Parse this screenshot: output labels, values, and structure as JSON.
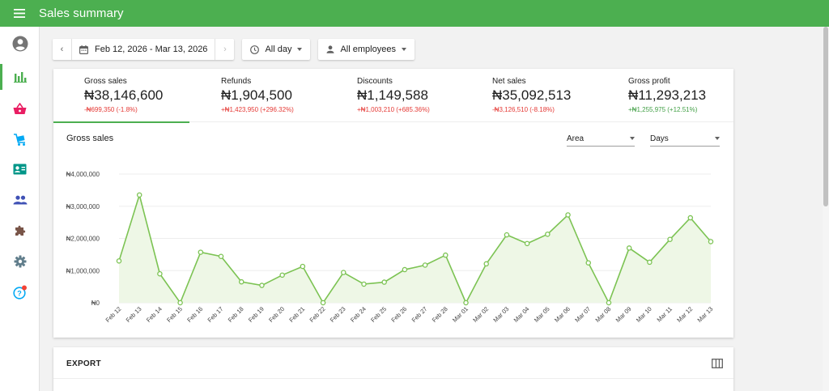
{
  "header": {
    "title": "Sales summary"
  },
  "filters": {
    "date_range": "Feb 12, 2026 - Mar 13, 2026",
    "time": "All day",
    "employees": "All employees"
  },
  "kpis": [
    {
      "label": "Gross sales",
      "value": "₦38,146,600",
      "change": "-₦699,350 (-1.8%)",
      "trend": "negative",
      "active": true
    },
    {
      "label": "Refunds",
      "value": "₦1,904,500",
      "change": "+₦1,423,950 (+296.32%)",
      "trend": "negative",
      "active": false
    },
    {
      "label": "Discounts",
      "value": "₦1,149,588",
      "change": "+₦1,003,210 (+685.36%)",
      "trend": "negative",
      "active": false
    },
    {
      "label": "Net sales",
      "value": "₦35,092,513",
      "change": "-₦3,126,510 (-8.18%)",
      "trend": "negative",
      "active": false
    },
    {
      "label": "Gross profit",
      "value": "₦11,293,213",
      "change": "+₦1,255,975 (+12.51%)",
      "trend": "positive",
      "active": false
    }
  ],
  "chart_section": {
    "title": "Gross sales",
    "chart_type_select": "Area",
    "period_select": "Days"
  },
  "chart_data": {
    "type": "area",
    "title": "Gross sales",
    "x": [
      "Feb 12",
      "Feb 13",
      "Feb 14",
      "Feb 15",
      "Feb 16",
      "Feb 17",
      "Feb 18",
      "Feb 19",
      "Feb 20",
      "Feb 21",
      "Feb 22",
      "Feb 23",
      "Feb 24",
      "Feb 25",
      "Feb 26",
      "Feb 27",
      "Feb 28",
      "Mar 01",
      "Mar 02",
      "Mar 03",
      "Mar 04",
      "Mar 05",
      "Mar 06",
      "Mar 07",
      "Mar 08",
      "Mar 09",
      "Mar 10",
      "Mar 11",
      "Mar 12",
      "Mar 13"
    ],
    "values": [
      1300000,
      3350000,
      900000,
      0,
      1570000,
      1440000,
      650000,
      540000,
      860000,
      1130000,
      0,
      940000,
      580000,
      640000,
      1030000,
      1170000,
      1480000,
      0,
      1210000,
      2110000,
      1840000,
      2130000,
      2730000,
      1240000,
      0,
      1700000,
      1260000,
      1970000,
      2640000,
      1900000
    ],
    "yticks": [
      0,
      1000000,
      2000000,
      3000000,
      4000000
    ],
    "ytick_labels": [
      "₦0",
      "₦1,000,000",
      "₦2,000,000",
      "₦3,000,000",
      "₦4,000,000"
    ],
    "ylim": [
      0,
      4000000
    ],
    "grid": true,
    "colors": {
      "line": "#7cc353",
      "fill": "#eef7e6"
    }
  },
  "export_section": {
    "title": "EXPORT"
  },
  "colors": {
    "brand": "#4caf50",
    "negative": "#e53935",
    "positive": "#43a047"
  }
}
